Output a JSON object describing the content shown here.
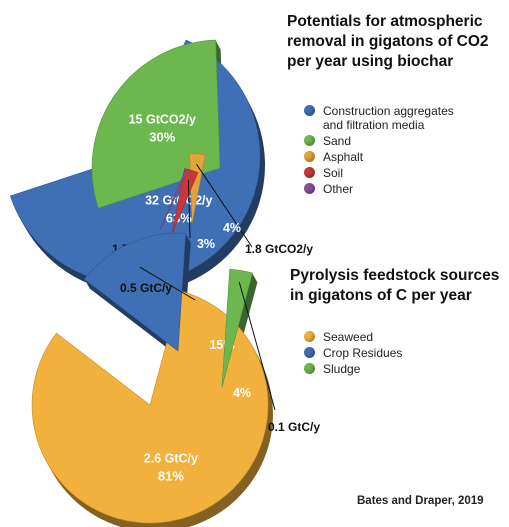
{
  "title_top": [
    "Potentials for atmospheric",
    "removal in gigatons of CO2",
    "per year using biochar"
  ],
  "title_bottom": [
    "Pyrolysis feedstock sources",
    "in gigatons of C per year"
  ],
  "source": "Bates and Draper, 2019",
  "chart_data": [
    {
      "type": "pie",
      "title": "Potentials for atmospheric removal in gigatons of CO2 per year using biochar",
      "categories": [
        "Construction aggregates and filtration media",
        "Sand",
        "Asphalt",
        "Soil",
        "Other"
      ],
      "legend_lines": [
        [
          "Construction aggregates",
          "and filtration media"
        ],
        [
          "Sand"
        ],
        [
          "Asphalt"
        ],
        [
          "Soil"
        ],
        [
          "Other"
        ]
      ],
      "values": [
        32,
        15,
        1.8,
        1.7,
        0.3
      ],
      "unit": "GtCO2/y",
      "colors": [
        "#3f6fb4",
        "#6cb84e",
        "#e2a43a",
        "#c8383a",
        "#8a4c9c"
      ],
      "slice_labels": [
        {
          "value": "32 GtCO2/y",
          "pct": "63%"
        },
        {
          "value": "15 GtCO2/y",
          "pct": "30%"
        },
        {
          "value": "1.8 GtCO2/y",
          "pct": "4%"
        },
        {
          "value": "1.7 GtCO2/y",
          "pct": "3%"
        },
        {
          "value": "",
          "pct": ""
        }
      ],
      "legend_position": "right"
    },
    {
      "type": "pie",
      "title": "Pyrolysis feedstock sources in gigatons of C per year",
      "categories": [
        "Seaweed",
        "Crop Residues",
        "Sludge"
      ],
      "legend_lines": [
        [
          "Seaweed"
        ],
        [
          "Crop Residues"
        ],
        [
          "Sludge"
        ]
      ],
      "values": [
        2.6,
        0.5,
        0.1
      ],
      "unit": "GtC/y",
      "colors": [
        "#f2b13d",
        "#3f6fb4",
        "#6cb84e"
      ],
      "slice_labels": [
        {
          "value": "2.6 GtC/y",
          "pct": "81%"
        },
        {
          "value": "0.5 GtC/y",
          "pct": "15%"
        },
        {
          "value": "0.1 GtC/y",
          "pct": "4%"
        }
      ],
      "legend_position": "right"
    }
  ]
}
